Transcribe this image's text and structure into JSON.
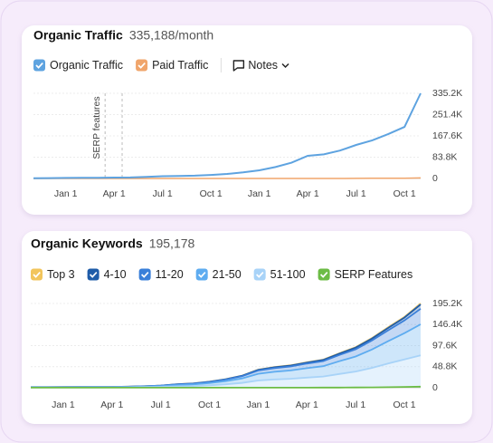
{
  "chart_data": [
    {
      "type": "line",
      "title": "Organic Traffic",
      "subtitle": "335,188/month",
      "notes_button": "Notes",
      "annotation": "SERP features",
      "categories": [
        null,
        null,
        "Jan 1",
        null,
        null,
        "Apr 1",
        null,
        null,
        "Jul 1",
        null,
        null,
        "Oct 1",
        null,
        null,
        "Jan 1",
        null,
        null,
        "Apr 1",
        null,
        null,
        "Jul 1",
        null,
        null,
        "Oct 1",
        null
      ],
      "series": [
        {
          "name": "Organic Traffic",
          "color": "#5ea3e0",
          "values": [
            1000,
            1500,
            2000,
            2500,
            3000,
            3500,
            4000,
            6000,
            9000,
            10000,
            11000,
            14000,
            18000,
            24000,
            32000,
            45000,
            62000,
            89000,
            95000,
            110000,
            132000,
            150000,
            175000,
            203000,
            335188
          ]
        },
        {
          "name": "Paid Traffic",
          "color": "#f0a56b",
          "values": [
            0,
            0,
            0,
            0,
            0,
            0,
            0,
            0,
            0,
            0,
            0,
            0,
            0,
            0,
            0,
            0,
            0,
            0,
            0,
            0,
            500,
            800,
            1000,
            1200,
            2000
          ]
        }
      ],
      "ylim": [
        0,
        335200
      ],
      "yticks": [
        0,
        {
          "value": 83800,
          "label": "83.8K"
        },
        {
          "value": 167600,
          "label": "167.6K"
        },
        {
          "value": 251400,
          "label": "251.4K"
        },
        {
          "value": 335200,
          "label": "335.2K"
        }
      ],
      "grid": true
    },
    {
      "type": "area",
      "title": "Organic Keywords",
      "subtitle": "195,178",
      "stacked": true,
      "categories": [
        null,
        null,
        "Jan 1",
        null,
        null,
        "Apr 1",
        null,
        null,
        "Jul 1",
        null,
        null,
        "Oct 1",
        null,
        null,
        "Jan 1",
        null,
        null,
        "Apr 1",
        null,
        null,
        "Jul 1",
        null,
        null,
        "Oct 1",
        null
      ],
      "series": [
        {
          "name": "Top 3",
          "color": "#f2c55c",
          "values": [
            15,
            15,
            16,
            17,
            18,
            20,
            25,
            35,
            50,
            80,
            100,
            140,
            200,
            280,
            420,
            480,
            520,
            590,
            650,
            800,
            940,
            1150,
            1400,
            1640,
            2178
          ]
        },
        {
          "name": "4-10",
          "color": "#1f5ca8",
          "values": [
            60,
            60,
            64,
            68,
            72,
            80,
            100,
            140,
            200,
            320,
            400,
            560,
            800,
            1120,
            1680,
            1920,
            2080,
            2360,
            2600,
            3200,
            3760,
            4600,
            5600,
            6560,
            10000
          ]
        },
        {
          "name": "11-20",
          "color": "#3a7fd9",
          "values": [
            270,
            270,
            288,
            306,
            324,
            360,
            450,
            630,
            900,
            1440,
            1800,
            2520,
            3600,
            5040,
            7560,
            8640,
            9360,
            10620,
            11700,
            14400,
            16920,
            20700,
            25200,
            29520,
            36000
          ]
        },
        {
          "name": "21-50",
          "color": "#5eacf0",
          "values": [
            555,
            555,
            592,
            629,
            666,
            740,
            925,
            1295,
            1850,
            2960,
            3700,
            5180,
            7400,
            10360,
            15540,
            17760,
            19240,
            21830,
            24050,
            29600,
            34780,
            42550,
            51800,
            60680,
            72000
          ]
        },
        {
          "name": "51-100",
          "color": "#a8d3f8",
          "values": [
            600,
            600,
            640,
            680,
            720,
            800,
            1000,
            1400,
            2000,
            3200,
            4000,
            5600,
            8000,
            11200,
            16800,
            19200,
            20800,
            23600,
            26000,
            32000,
            37600,
            46000,
            56000,
            65600,
            75000
          ]
        },
        {
          "name": "SERP Features",
          "color": "#6cbc45",
          "stacked": false,
          "values": [
            300,
            300,
            300,
            300,
            300,
            300,
            300,
            300,
            300,
            300,
            300,
            300,
            300,
            300,
            300,
            300,
            300,
            300,
            400,
            500,
            600,
            800,
            1200,
            1800,
            2500
          ]
        }
      ],
      "ylim": [
        0,
        195200
      ],
      "yticks": [
        0,
        {
          "value": 48800,
          "label": "48.8K"
        },
        {
          "value": 97600,
          "label": "97.6K"
        },
        {
          "value": 146400,
          "label": "146.4K"
        },
        {
          "value": 195200,
          "label": "195.2K"
        }
      ],
      "grid": true
    }
  ]
}
